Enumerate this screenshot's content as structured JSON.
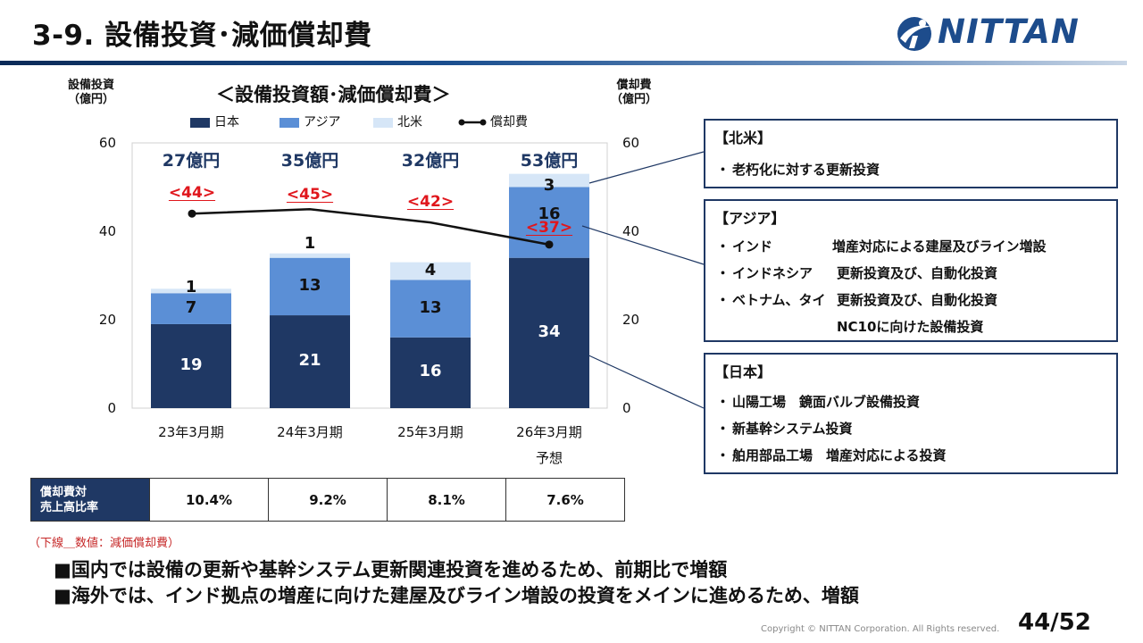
{
  "header": {
    "title": "3-9. 設備投資･減価償却費",
    "logo_text": "NITTAN",
    "brand_color": "#1d4c8c"
  },
  "chart_data": {
    "type": "bar",
    "stacked": true,
    "title": "＜設備投資額･減価償却費＞",
    "left_axis_title": [
      "設備投資",
      "（億円）"
    ],
    "right_axis_title": [
      "償却費",
      "（億円）"
    ],
    "categories": [
      "23年3月期",
      "24年3月期",
      "25年3月期",
      "26年3月期"
    ],
    "category_sub": [
      "",
      "",
      "",
      "予想"
    ],
    "ylim": [
      0,
      60
    ],
    "yticks": [
      "0",
      "20",
      "40",
      "60"
    ],
    "series": [
      {
        "name": "日本",
        "color": "#1f3864",
        "values": [
          19,
          21,
          16,
          34
        ]
      },
      {
        "name": "アジア",
        "color": "#5b8fd6",
        "values": [
          7,
          13,
          13,
          16
        ]
      },
      {
        "name": "北米",
        "color": "#d6e6f7",
        "values": [
          1,
          1,
          4,
          3
        ]
      }
    ],
    "line_series": {
      "name": "償却費",
      "color": "#111111",
      "values": [
        44,
        45,
        42,
        37
      ],
      "labels": [
        "<44>",
        "<45>",
        "<42>",
        "<37>"
      ]
    },
    "totals": [
      "27億円",
      "35億円",
      "32億円",
      "53億円"
    ],
    "legend_position": "top",
    "grid": false
  },
  "ratio_table": {
    "header": [
      "償却費対",
      "売上高比率"
    ],
    "values": [
      "10.4%",
      "9.2%",
      "8.1%",
      "7.6%"
    ]
  },
  "note": "（下線＿数値：減価償却費）",
  "boxes": {
    "north_america": {
      "title": "【北米】",
      "lines": [
        {
          "dot": "・",
          "text": "老朽化に対する更新投資"
        }
      ]
    },
    "asia": {
      "title": "【アジア】",
      "lines": [
        {
          "dot": "・",
          "label": "インド",
          "text": "増産対応による建屋及びライン増設"
        },
        {
          "dot": "・",
          "label": "インドネシア",
          "text": "更新投資及び、自動化投資"
        },
        {
          "dot": "・",
          "label": "ベトナム、タイ",
          "text": "更新投資及び、自動化投資"
        },
        {
          "dot": "",
          "label": "",
          "text": "NC10に向けた設備投資"
        }
      ]
    },
    "japan": {
      "title": "【日本】",
      "lines": [
        {
          "dot": "・",
          "text": "山陽工場　鏡面バルブ設備投資"
        },
        {
          "dot": "・",
          "text": "新基幹システム投資"
        },
        {
          "dot": "・",
          "text": "舶用部品工場　増産対応による投資"
        }
      ]
    }
  },
  "bullets": [
    "■国内では設備の更新や基幹システム更新関連投資を進めるため、前期比で増額",
    "■海外では、インド拠点の増産に向けた建屋及びライン増設の投資をメインに進めるため、増額"
  ],
  "footer": {
    "copyright": "Copyright © NITTAN Corporation. All Rights reserved.",
    "page": "44/52"
  }
}
